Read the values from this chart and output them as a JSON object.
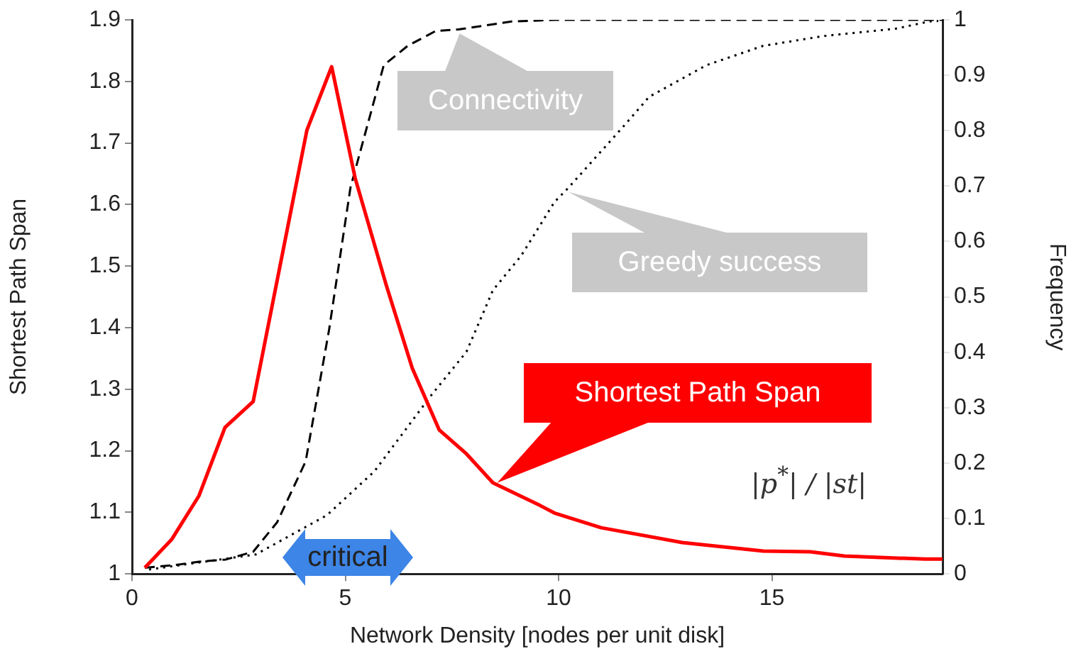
{
  "chart_data": {
    "type": "line",
    "xlabel": "Network Density [nodes per unit disk]",
    "ylabel": "Shortest Path Span",
    "y2label": "Frequency",
    "xlim": [
      0,
      19
    ],
    "xticks": [
      0,
      5,
      10,
      15
    ],
    "ylim": [
      1,
      1.9
    ],
    "yticks": [
      1,
      1.1,
      1.2,
      1.3,
      1.4,
      1.5,
      1.6,
      1.7,
      1.8,
      1.9
    ],
    "y2lim": [
      0,
      1
    ],
    "y2ticks": [
      0,
      0.1,
      0.2,
      0.3,
      0.4,
      0.5,
      0.6,
      0.7,
      0.8,
      0.9,
      1
    ],
    "grid": false,
    "legend": false,
    "marker": "none",
    "series": [
      {
        "name": "Shortest Path Span",
        "color": "#ff0000",
        "line_style": "solid",
        "x": [
          0.3,
          0.93,
          1.57,
          2.18,
          2.84,
          4.1,
          4.68,
          5.23,
          5.96,
          6.57,
          7.2,
          7.84,
          8.46,
          9.57,
          9.9,
          11,
          12.9,
          14.8,
          15.9,
          16.7,
          18.6,
          19
        ],
        "values": [
          1.01,
          1.056,
          1.127,
          1.238,
          1.28,
          1.721,
          1.824,
          1.643,
          1.469,
          1.334,
          1.234,
          1.195,
          1.148,
          1.111,
          1.099,
          1.075,
          1.051,
          1.037,
          1.036,
          1.029,
          1.024,
          1.024
        ]
      },
      {
        "name": "Connectivity",
        "color": "#000000",
        "line_style": "dashed",
        "axis": "y2",
        "x": [
          0.3,
          1.01,
          1.57,
          2.2,
          2.84,
          3.4,
          4.07,
          4.62,
          5.12,
          5.9,
          6.46,
          7.12,
          7.68,
          8.9,
          9.9,
          19
        ],
        "values": [
          0.011,
          0.016,
          0.022,
          0.026,
          0.04,
          0.093,
          0.203,
          0.441,
          0.697,
          0.918,
          0.953,
          0.98,
          0.983,
          0.997,
          1,
          1
        ]
      },
      {
        "name": "Greedy success",
        "color": "#000000",
        "line_style": "dotted",
        "axis": "y2",
        "x": [
          0.4,
          2.9,
          4.57,
          5.68,
          7.01,
          7.84,
          8.46,
          9.12,
          9.9,
          10.23,
          11.57,
          12.12,
          13.46,
          14.79,
          16.23,
          17.9,
          18.68,
          18.9
        ],
        "values": [
          0.008,
          0.035,
          0.106,
          0.185,
          0.322,
          0.401,
          0.512,
          0.574,
          0.671,
          0.697,
          0.812,
          0.861,
          0.918,
          0.953,
          0.971,
          0.984,
          0.997,
          0.998
        ]
      }
    ],
    "annotations": [
      "critical",
      "|p$^{*}$| / |st|"
    ]
  }
}
